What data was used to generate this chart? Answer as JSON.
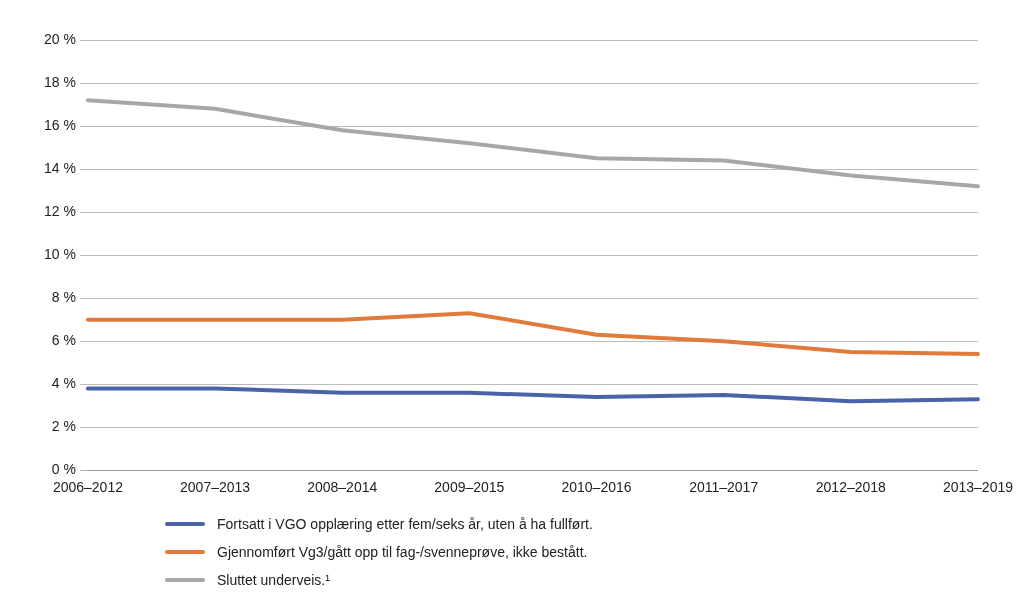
{
  "chart_data": {
    "type": "line",
    "categories": [
      "2006–2012",
      "2007–2013",
      "2008–2014",
      "2009–2015",
      "2010–2016",
      "2011–2017",
      "2012–2018",
      "2013–2019"
    ],
    "series": [
      {
        "name": "Fortsatt i VGO opplæring etter fem/seks år, uten å ha fullført.",
        "color": "#4a62a8",
        "values": [
          3.8,
          3.8,
          3.6,
          3.6,
          3.4,
          3.5,
          3.2,
          3.3
        ]
      },
      {
        "name": "Gjennomført Vg3/gått opp til fag-/svenneprøve, ikke bestått.",
        "color": "#e07b3c",
        "values": [
          7.0,
          7.0,
          7.0,
          7.3,
          6.3,
          6.0,
          5.5,
          5.4
        ]
      },
      {
        "name": "Sluttet underveis.¹",
        "color": "#a7a7a7",
        "values": [
          17.2,
          16.8,
          15.8,
          15.2,
          14.5,
          14.4,
          13.7,
          13.2
        ]
      }
    ],
    "ylim": [
      0,
      20
    ],
    "yticks": [
      {
        "value": 0,
        "label": "0 %"
      },
      {
        "value": 2,
        "label": "2 %"
      },
      {
        "value": 4,
        "label": "4 %"
      },
      {
        "value": 6,
        "label": "6 %"
      },
      {
        "value": 8,
        "label": "8 %"
      },
      {
        "value": 10,
        "label": "10 %"
      },
      {
        "value": 12,
        "label": "12 %"
      },
      {
        "value": 14,
        "label": "14 %"
      },
      {
        "value": 16,
        "label": "16 %"
      },
      {
        "value": 18,
        "label": "18 %"
      },
      {
        "value": 20,
        "label": "20 %"
      }
    ],
    "grid": "y",
    "legend": "bottom",
    "marker": "none",
    "line_style": "solid"
  }
}
